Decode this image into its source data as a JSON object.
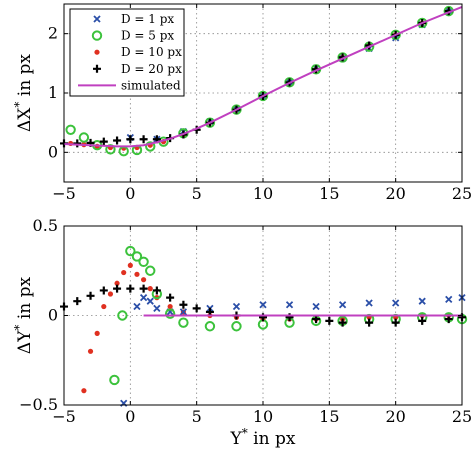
{
  "chart_data": [
    {
      "type": "scatter",
      "xlabel": "",
      "ylabel": "ΔX* in px",
      "ylabel_main": "ΔX",
      "ylabel_sup": "*",
      "ylabel_rest": " in px",
      "xlim": [
        -5,
        25
      ],
      "ylim": [
        -0.5,
        2.5
      ],
      "x_ticks": [
        -5,
        0,
        5,
        10,
        15,
        20,
        25
      ],
      "y_ticks": [
        0,
        1,
        2
      ],
      "grid": true,
      "legend_position": "top-left",
      "series": [
        {
          "name": "D = 1 px",
          "marker": "x",
          "color": "#2b4fa8",
          "points": [
            [
              0,
              0.25
            ],
            [
              2,
              0.22
            ],
            [
              4,
              0.35
            ],
            [
              6,
              0.52
            ],
            [
              8,
              0.73
            ],
            [
              10,
              0.95
            ],
            [
              12,
              1.18
            ],
            [
              14,
              1.42
            ],
            [
              16,
              1.58
            ],
            [
              18,
              1.75
            ],
            [
              20,
              1.93
            ],
            [
              22,
              2.15
            ],
            [
              24,
              2.38
            ]
          ]
        },
        {
          "name": "D = 5 px",
          "marker": "circle",
          "color": "#3cc23c",
          "points": [
            [
              -4.5,
              0.38
            ],
            [
              -3.5,
              0.25
            ],
            [
              -2.5,
              0.12
            ],
            [
              -1.5,
              0.05
            ],
            [
              -0.5,
              0.02
            ],
            [
              0.5,
              0.04
            ],
            [
              1.5,
              0.1
            ],
            [
              2.5,
              0.18
            ],
            [
              4,
              0.32
            ],
            [
              6,
              0.5
            ],
            [
              8,
              0.72
            ],
            [
              10,
              0.95
            ],
            [
              12,
              1.18
            ],
            [
              14,
              1.4
            ],
            [
              16,
              1.6
            ],
            [
              18,
              1.78
            ],
            [
              20,
              1.98
            ],
            [
              22,
              2.18
            ],
            [
              24,
              2.38
            ]
          ]
        },
        {
          "name": "D = 10 px",
          "marker": "dot",
          "color": "#e03020",
          "points": [
            [
              -4.5,
              0.15
            ],
            [
              -3.5,
              0.13
            ],
            [
              -2.5,
              0.1
            ],
            [
              -1.5,
              0.08
            ],
            [
              -0.5,
              0.07
            ],
            [
              0.5,
              0.08
            ],
            [
              1.5,
              0.12
            ],
            [
              2.5,
              0.18
            ],
            [
              4,
              0.3
            ],
            [
              6,
              0.5
            ],
            [
              8,
              0.72
            ],
            [
              10,
              0.95
            ],
            [
              12,
              1.18
            ],
            [
              14,
              1.4
            ],
            [
              16,
              1.6
            ],
            [
              18,
              1.8
            ],
            [
              20,
              1.98
            ],
            [
              22,
              2.18
            ],
            [
              24,
              2.38
            ]
          ]
        },
        {
          "name": "D = 20 px",
          "marker": "plus",
          "color": "#000000",
          "points": [
            [
              -5,
              0.15
            ],
            [
              -4,
              0.15
            ],
            [
              -3,
              0.16
            ],
            [
              -2,
              0.18
            ],
            [
              -1,
              0.2
            ],
            [
              0,
              0.22
            ],
            [
              1,
              0.22
            ],
            [
              2,
              0.22
            ],
            [
              3,
              0.24
            ],
            [
              4,
              0.3
            ],
            [
              5,
              0.38
            ],
            [
              6,
              0.5
            ],
            [
              8,
              0.72
            ],
            [
              10,
              0.95
            ],
            [
              12,
              1.18
            ],
            [
              14,
              1.4
            ],
            [
              16,
              1.6
            ],
            [
              18,
              1.8
            ],
            [
              20,
              1.98
            ],
            [
              22,
              2.18
            ],
            [
              24,
              2.38
            ]
          ]
        },
        {
          "name": "simulated",
          "marker": "line",
          "color": "#c040c0",
          "points": [
            [
              -5,
              0.14
            ],
            [
              -3,
              0.12
            ],
            [
              -1,
              0.1
            ],
            [
              0,
              0.1
            ],
            [
              1,
              0.12
            ],
            [
              2,
              0.17
            ],
            [
              3,
              0.23
            ],
            [
              4,
              0.31
            ],
            [
              5,
              0.4
            ],
            [
              6,
              0.5
            ],
            [
              8,
              0.72
            ],
            [
              10,
              0.95
            ],
            [
              12,
              1.17
            ],
            [
              14,
              1.38
            ],
            [
              16,
              1.58
            ],
            [
              18,
              1.78
            ],
            [
              20,
              1.98
            ],
            [
              22,
              2.18
            ],
            [
              25,
              2.45
            ]
          ]
        }
      ]
    },
    {
      "type": "scatter",
      "xlabel": "Y* in px",
      "xlabel_main": "Y",
      "xlabel_sup": "*",
      "xlabel_rest": " in px",
      "ylabel": "ΔY* in px",
      "ylabel_main": "ΔY",
      "ylabel_sup": "*",
      "ylabel_rest": " in px",
      "xlim": [
        -5,
        25
      ],
      "ylim": [
        -0.5,
        0.5
      ],
      "x_ticks": [
        -5,
        0,
        5,
        10,
        15,
        20,
        25
      ],
      "y_ticks": [
        -0.5,
        0,
        0.5
      ],
      "grid": true,
      "series": [
        {
          "name": "D = 1 px",
          "marker": "x",
          "color": "#2b4fa8",
          "points": [
            [
              -0.5,
              -0.49
            ],
            [
              0.5,
              0.05
            ],
            [
              1,
              0.1
            ],
            [
              1.5,
              0.08
            ],
            [
              2,
              0.04
            ],
            [
              3,
              0.02
            ],
            [
              4,
              0.02
            ],
            [
              6,
              0.04
            ],
            [
              8,
              0.05
            ],
            [
              10,
              0.06
            ],
            [
              12,
              0.06
            ],
            [
              14,
              0.05
            ],
            [
              16,
              0.06
            ],
            [
              18,
              0.07
            ],
            [
              20,
              0.07
            ],
            [
              22,
              0.08
            ],
            [
              24,
              0.09
            ],
            [
              25,
              0.1
            ]
          ]
        },
        {
          "name": "D = 5 px",
          "marker": "circle",
          "color": "#3cc23c",
          "points": [
            [
              -1.2,
              -0.36
            ],
            [
              -0.6,
              0.0
            ],
            [
              0,
              0.36
            ],
            [
              0.5,
              0.33
            ],
            [
              1,
              0.3
            ],
            [
              1.5,
              0.25
            ],
            [
              2,
              0.12
            ],
            [
              3,
              0.01
            ],
            [
              4,
              -0.04
            ],
            [
              6,
              -0.06
            ],
            [
              8,
              -0.06
            ],
            [
              10,
              -0.05
            ],
            [
              12,
              -0.04
            ],
            [
              14,
              -0.03
            ],
            [
              16,
              -0.03
            ],
            [
              18,
              -0.02
            ],
            [
              20,
              -0.02
            ],
            [
              22,
              -0.01
            ],
            [
              24,
              -0.01
            ],
            [
              25,
              -0.02
            ]
          ]
        },
        {
          "name": "D = 10 px",
          "marker": "dot",
          "color": "#e03020",
          "points": [
            [
              -3.5,
              -0.42
            ],
            [
              -3,
              -0.2
            ],
            [
              -2.5,
              -0.1
            ],
            [
              -2,
              0.05
            ],
            [
              -1.5,
              0.12
            ],
            [
              -1,
              0.18
            ],
            [
              -0.5,
              0.24
            ],
            [
              0,
              0.28
            ],
            [
              0.5,
              0.23
            ],
            [
              1,
              0.2
            ],
            [
              1.5,
              0.15
            ],
            [
              2,
              0.1
            ],
            [
              3,
              0.05
            ],
            [
              4,
              0.02
            ],
            [
              6,
              0.0
            ],
            [
              8,
              -0.01
            ],
            [
              10,
              -0.02
            ],
            [
              12,
              -0.02
            ],
            [
              14,
              -0.02
            ],
            [
              16,
              -0.02
            ],
            [
              18,
              -0.01
            ],
            [
              20,
              -0.01
            ],
            [
              22,
              0.0
            ],
            [
              24,
              0.0
            ]
          ]
        },
        {
          "name": "D = 20 px",
          "marker": "plus",
          "color": "#000000",
          "points": [
            [
              -5,
              0.05
            ],
            [
              -4,
              0.08
            ],
            [
              -3,
              0.11
            ],
            [
              -2,
              0.14
            ],
            [
              -1,
              0.15
            ],
            [
              0,
              0.15
            ],
            [
              1,
              0.15
            ],
            [
              2,
              0.14
            ],
            [
              3,
              0.1
            ],
            [
              4,
              0.06
            ],
            [
              5,
              0.04
            ],
            [
              6,
              0.02
            ],
            [
              8,
              0.0
            ],
            [
              10,
              -0.01
            ],
            [
              12,
              -0.01
            ],
            [
              14,
              -0.02
            ],
            [
              15,
              -0.03
            ],
            [
              16,
              -0.04
            ],
            [
              18,
              -0.04
            ],
            [
              20,
              -0.04
            ],
            [
              22,
              -0.03
            ],
            [
              24,
              -0.02
            ],
            [
              25,
              -0.01
            ]
          ]
        },
        {
          "name": "simulated",
          "marker": "line",
          "color": "#c040c0",
          "points": [
            [
              1,
              0.0
            ],
            [
              25,
              0.0
            ]
          ]
        }
      ]
    }
  ]
}
